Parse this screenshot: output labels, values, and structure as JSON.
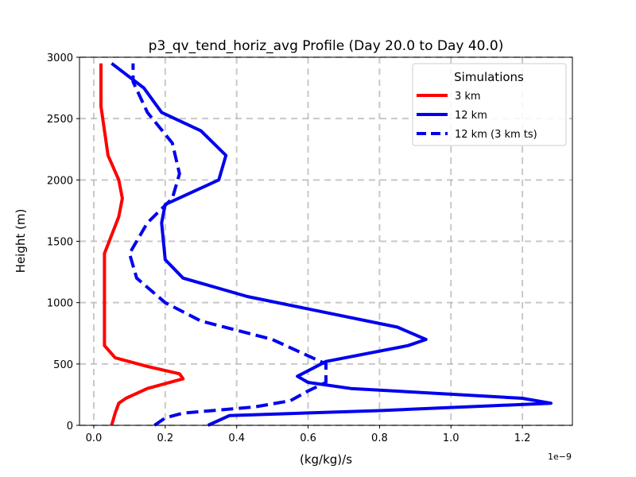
{
  "chart_data": {
    "type": "line",
    "title": "p3_qv_tend_horiz_avg Profile (Day 20.0 to Day 40.0)",
    "xlabel": "(kg/kg)/s",
    "ylabel": "Height (m)",
    "x_offset_label": "1e−9",
    "xlim": [
      -0.04,
      1.34
    ],
    "ylim": [
      0,
      3000
    ],
    "xticks": [
      0.0,
      0.2,
      0.4,
      0.6,
      0.8,
      1.0,
      1.2
    ],
    "xtick_labels": [
      "0.0",
      "0.2",
      "0.4",
      "0.6",
      "0.8",
      "1.0",
      "1.2"
    ],
    "yticks": [
      0,
      500,
      1000,
      1500,
      2000,
      2500,
      3000
    ],
    "ytick_labels": [
      "0",
      "500",
      "1000",
      "1500",
      "2000",
      "2500",
      "3000"
    ],
    "grid": true,
    "legend": {
      "title": "Simulations",
      "placement": "top-right"
    },
    "series": [
      {
        "name": "3 km",
        "color": "#ff0000",
        "style": "solid",
        "points": [
          [
            0.05,
            0
          ],
          [
            0.06,
            100
          ],
          [
            0.07,
            180
          ],
          [
            0.09,
            220
          ],
          [
            0.15,
            300
          ],
          [
            0.25,
            380
          ],
          [
            0.24,
            420
          ],
          [
            0.15,
            480
          ],
          [
            0.06,
            550
          ],
          [
            0.03,
            650
          ],
          [
            0.03,
            1000
          ],
          [
            0.03,
            1400
          ],
          [
            0.07,
            1700
          ],
          [
            0.08,
            1850
          ],
          [
            0.07,
            2000
          ],
          [
            0.04,
            2200
          ],
          [
            0.02,
            2600
          ],
          [
            0.02,
            2950
          ]
        ]
      },
      {
        "name": "12 km",
        "color": "#0000ee",
        "style": "solid",
        "points": [
          [
            0.32,
            0
          ],
          [
            0.38,
            80
          ],
          [
            0.8,
            120
          ],
          [
            1.28,
            180
          ],
          [
            1.2,
            220
          ],
          [
            0.72,
            300
          ],
          [
            0.6,
            350
          ],
          [
            0.57,
            400
          ],
          [
            0.65,
            520
          ],
          [
            0.88,
            650
          ],
          [
            0.93,
            700
          ],
          [
            0.85,
            800
          ],
          [
            0.43,
            1050
          ],
          [
            0.25,
            1200
          ],
          [
            0.2,
            1350
          ],
          [
            0.19,
            1650
          ],
          [
            0.2,
            1800
          ],
          [
            0.35,
            2000
          ],
          [
            0.37,
            2200
          ],
          [
            0.3,
            2400
          ],
          [
            0.19,
            2550
          ],
          [
            0.14,
            2750
          ],
          [
            0.05,
            2950
          ]
        ]
      },
      {
        "name": "12 km (3 km ts)",
        "color": "#0000ee",
        "style": "dashed",
        "points": [
          [
            0.17,
            0
          ],
          [
            0.2,
            60
          ],
          [
            0.25,
            100
          ],
          [
            0.45,
            150
          ],
          [
            0.55,
            200
          ],
          [
            0.6,
            280
          ],
          [
            0.65,
            350
          ],
          [
            0.65,
            500
          ],
          [
            0.5,
            700
          ],
          [
            0.3,
            850
          ],
          [
            0.2,
            1000
          ],
          [
            0.12,
            1200
          ],
          [
            0.1,
            1400
          ],
          [
            0.15,
            1650
          ],
          [
            0.22,
            1850
          ],
          [
            0.24,
            2050
          ],
          [
            0.22,
            2300
          ],
          [
            0.15,
            2550
          ],
          [
            0.11,
            2800
          ],
          [
            0.11,
            2950
          ]
        ]
      }
    ]
  }
}
